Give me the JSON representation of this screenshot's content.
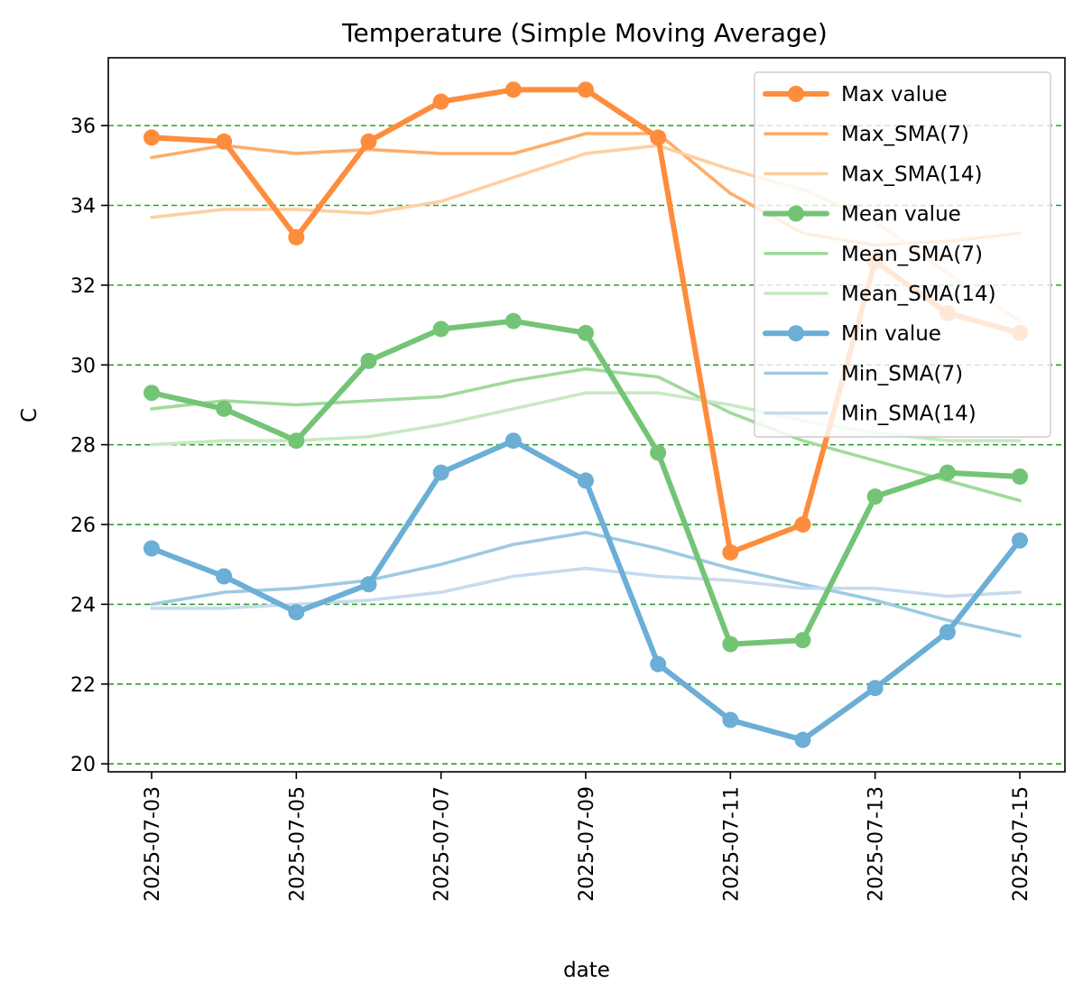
{
  "chart_data": {
    "type": "line",
    "title": "Temperature (Simple Moving Average)",
    "xlabel": "date",
    "ylabel": "C",
    "x": [
      "2025-07-03",
      "2025-07-04",
      "2025-07-05",
      "2025-07-06",
      "2025-07-07",
      "2025-07-08",
      "2025-07-09",
      "2025-07-10",
      "2025-07-11",
      "2025-07-12",
      "2025-07-13",
      "2025-07-14",
      "2025-07-15"
    ],
    "x_tick_labels": [
      "2025-07-03",
      "2025-07-05",
      "2025-07-07",
      "2025-07-09",
      "2025-07-11",
      "2025-07-13",
      "2025-07-15"
    ],
    "y_ticks": [
      20,
      22,
      24,
      26,
      28,
      30,
      32,
      34,
      36
    ],
    "ylim": [
      19.8,
      37.7
    ],
    "grid": "horizontal dashed",
    "grid_color": "#2ca02c",
    "legend_position": "upper right",
    "series": [
      {
        "name": "Max value",
        "color": "#fd8d3c",
        "style": "thick-markers",
        "values": [
          35.7,
          35.6,
          33.2,
          35.6,
          36.6,
          36.9,
          36.9,
          35.7,
          25.3,
          26.0,
          32.6,
          31.3,
          30.8
        ]
      },
      {
        "name": "Max_SMA(7)",
        "color": "#fdae6b",
        "style": "thin",
        "values": [
          35.2,
          35.5,
          35.3,
          35.4,
          35.3,
          35.3,
          35.8,
          35.8,
          34.3,
          33.3,
          33.0,
          33.1,
          33.3
        ]
      },
      {
        "name": "Max_SMA(14)",
        "color": "#fdd0a2",
        "style": "thin",
        "values": [
          33.7,
          33.9,
          33.9,
          33.8,
          34.1,
          34.7,
          35.3,
          35.5,
          34.9,
          34.4,
          33.6,
          32.3,
          31.1
        ]
      },
      {
        "name": "Mean value",
        "color": "#74c476",
        "style": "thick-markers",
        "values": [
          29.3,
          28.9,
          28.1,
          30.1,
          30.9,
          31.1,
          30.8,
          27.8,
          23.0,
          23.1,
          26.7,
          27.3,
          27.2
        ]
      },
      {
        "name": "Mean_SMA(7)",
        "color": "#a1d99b",
        "style": "thin",
        "values": [
          28.9,
          29.1,
          29.0,
          29.1,
          29.2,
          29.6,
          29.9,
          29.7,
          28.8,
          28.1,
          27.6,
          27.1,
          26.6
        ]
      },
      {
        "name": "Mean_SMA(14)",
        "color": "#c7e9c0",
        "style": "thin",
        "values": [
          28.0,
          28.1,
          28.1,
          28.2,
          28.5,
          28.9,
          29.3,
          29.3,
          29.0,
          28.6,
          28.3,
          28.1,
          28.1
        ]
      },
      {
        "name": "Min value",
        "color": "#6baed6",
        "style": "thick-markers",
        "values": [
          25.4,
          24.7,
          23.8,
          24.5,
          27.3,
          28.1,
          27.1,
          22.5,
          21.1,
          20.6,
          21.9,
          23.3,
          25.6
        ]
      },
      {
        "name": "Min_SMA(7)",
        "color": "#9ecae1",
        "style": "thin",
        "values": [
          24.0,
          24.3,
          24.4,
          24.6,
          25.0,
          25.5,
          25.8,
          25.4,
          24.9,
          24.5,
          24.1,
          23.6,
          23.2
        ]
      },
      {
        "name": "Min_SMA(14)",
        "color": "#c6dbef",
        "style": "thin",
        "values": [
          23.9,
          23.9,
          24.0,
          24.1,
          24.3,
          24.7,
          24.9,
          24.7,
          24.6,
          24.4,
          24.4,
          24.2,
          24.3
        ]
      }
    ]
  }
}
